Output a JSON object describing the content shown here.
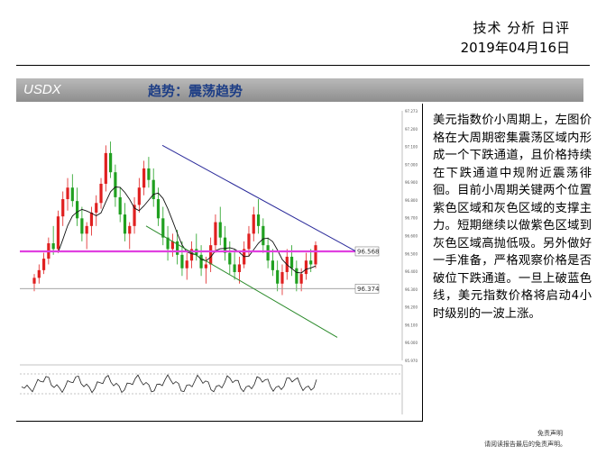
{
  "header": {
    "title": "技术 分析 日评",
    "date": "2019年04月16日"
  },
  "section": {
    "code": "USDX",
    "heading": "趋势：震荡趋势"
  },
  "chart_data": {
    "type": "line",
    "title": "",
    "xlabel": "",
    "ylabel": "",
    "ylim": [
      96.0,
      97.3
    ],
    "yticks": [
      "97.273",
      "97.200",
      "97.100",
      "97.000",
      "96.900",
      "96.800",
      "96.700",
      "96.600",
      "96.500",
      "96.400",
      "96.300",
      "96.200",
      "96.100",
      "96.000",
      "95.970"
    ],
    "levels": [
      {
        "label": "96.568",
        "value": 96.568,
        "color": "#e040e0"
      },
      {
        "label": "96.374",
        "value": 96.374,
        "color": "#999999"
      }
    ],
    "candles": [
      [
        96.4,
        96.45,
        96.36,
        96.43
      ],
      [
        96.43,
        96.5,
        96.4,
        96.47
      ],
      [
        96.47,
        96.56,
        96.45,
        96.53
      ],
      [
        96.53,
        96.64,
        96.5,
        96.61
      ],
      [
        96.61,
        96.7,
        96.55,
        96.58
      ],
      [
        96.58,
        96.78,
        96.56,
        96.75
      ],
      [
        96.75,
        96.88,
        96.7,
        96.84
      ],
      [
        96.84,
        96.95,
        96.78,
        96.9
      ],
      [
        96.9,
        96.97,
        96.8,
        96.83
      ],
      [
        96.83,
        96.9,
        96.7,
        96.74
      ],
      [
        96.74,
        96.8,
        96.62,
        96.66
      ],
      [
        96.66,
        96.72,
        96.58,
        96.7
      ],
      [
        96.7,
        96.8,
        96.65,
        96.77
      ],
      [
        96.77,
        96.86,
        96.7,
        96.82
      ],
      [
        96.82,
        96.95,
        96.79,
        96.92
      ],
      [
        96.92,
        97.12,
        96.88,
        97.08
      ],
      [
        97.08,
        97.14,
        96.95,
        96.98
      ],
      [
        96.98,
        97.02,
        96.8,
        96.85
      ],
      [
        96.85,
        96.9,
        96.72,
        96.76
      ],
      [
        96.76,
        96.82,
        96.62,
        96.66
      ],
      [
        96.66,
        96.72,
        96.58,
        96.7
      ],
      [
        96.7,
        96.85,
        96.66,
        96.81
      ],
      [
        96.81,
        96.95,
        96.77,
        96.9
      ],
      [
        96.9,
        97.04,
        96.86,
        97.0
      ],
      [
        97.0,
        97.06,
        96.9,
        96.94
      ],
      [
        96.94,
        97.0,
        96.8,
        96.84
      ],
      [
        96.84,
        96.9,
        96.7,
        96.74
      ],
      [
        96.74,
        96.8,
        96.6,
        96.64
      ],
      [
        96.64,
        96.7,
        96.52,
        96.58
      ],
      [
        96.58,
        96.66,
        96.54,
        96.62
      ],
      [
        96.62,
        96.68,
        96.5,
        96.55
      ],
      [
        96.55,
        96.62,
        96.44,
        96.48
      ],
      [
        96.48,
        96.56,
        96.42,
        96.52
      ],
      [
        96.52,
        96.62,
        96.48,
        96.58
      ],
      [
        96.58,
        96.66,
        96.52,
        96.55
      ],
      [
        96.55,
        96.6,
        96.44,
        96.48
      ],
      [
        96.48,
        96.54,
        96.4,
        96.5
      ],
      [
        96.5,
        96.64,
        96.46,
        96.6
      ],
      [
        96.6,
        96.76,
        96.56,
        96.72
      ],
      [
        96.72,
        96.8,
        96.6,
        96.64
      ],
      [
        96.64,
        96.7,
        96.52,
        96.56
      ],
      [
        96.56,
        96.62,
        96.45,
        96.5
      ],
      [
        96.5,
        96.58,
        96.42,
        96.46
      ],
      [
        96.46,
        96.54,
        96.4,
        96.5
      ],
      [
        96.5,
        96.62,
        96.48,
        96.58
      ],
      [
        96.58,
        96.7,
        96.54,
        96.66
      ],
      [
        96.66,
        96.8,
        96.62,
        96.76
      ],
      [
        96.76,
        96.84,
        96.66,
        96.7
      ],
      [
        96.7,
        96.74,
        96.56,
        96.6
      ],
      [
        96.6,
        96.64,
        96.48,
        96.52
      ],
      [
        96.52,
        96.58,
        96.44,
        96.47
      ],
      [
        96.47,
        96.52,
        96.36,
        96.4
      ],
      [
        96.4,
        96.5,
        96.34,
        96.46
      ],
      [
        96.46,
        96.58,
        96.42,
        96.54
      ],
      [
        96.54,
        96.6,
        96.44,
        96.48
      ],
      [
        96.48,
        96.52,
        96.36,
        96.4
      ],
      [
        96.4,
        96.48,
        96.36,
        96.45
      ],
      [
        96.45,
        96.56,
        96.42,
        96.52
      ],
      [
        96.52,
        96.58,
        96.46,
        96.5
      ],
      [
        96.5,
        96.62,
        96.48,
        96.6
      ]
    ]
  },
  "analysis": {
    "text": "美元指数价小周期上，左图价格在大周期密集震荡区域内形成一个下跌通道，且价格持续在下跌通道中规附近震荡徘徊。目前小周期关键两个位置紫色区域和灰色区域的支撑主力。短期继续以做紫色区域到灰色区域高抛低吸。另外做好一手准备，严格观察价格是否破位下跌通道。一旦上破蓝色线，美元指数价格将启动4小时级别的一波上涨。"
  },
  "footer": {
    "line1": "免责声明",
    "line2": "请阅读报告最后的免责声明。"
  }
}
